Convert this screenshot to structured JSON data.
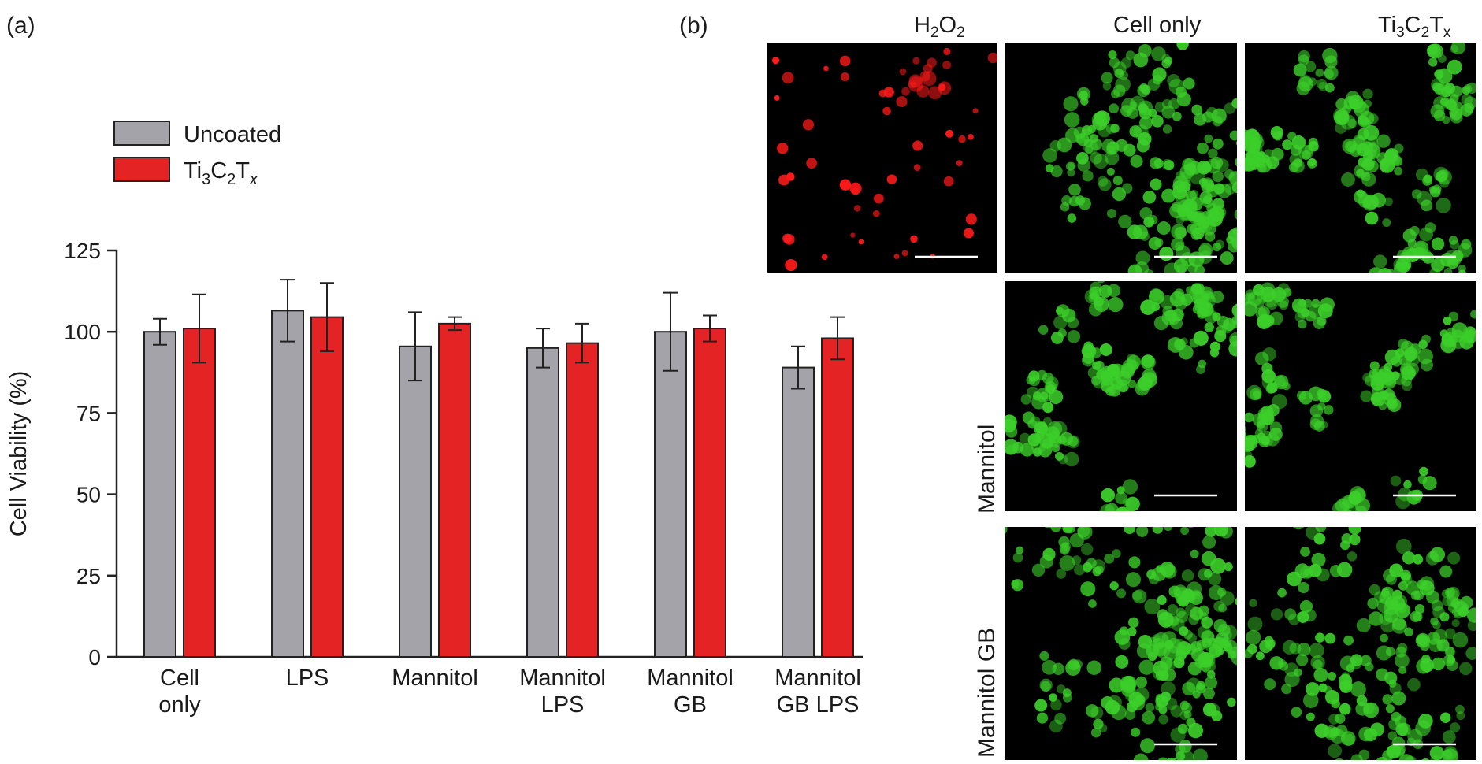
{
  "panels": {
    "a_label": "(a)",
    "b_label": "(b)"
  },
  "chart_data": {
    "type": "bar",
    "title": "",
    "xlabel": "",
    "ylabel": "Cell Viability (%)",
    "ylim": [
      0,
      125
    ],
    "yticks": [
      "0",
      "25",
      "50",
      "75",
      "100",
      "125"
    ],
    "categories": [
      [
        "Cell",
        "only"
      ],
      [
        "LPS"
      ],
      [
        "Mannitol"
      ],
      [
        "Mannitol",
        "LPS"
      ],
      [
        "Mannitol",
        "GB"
      ],
      [
        "Mannitol",
        "GB LPS"
      ]
    ],
    "legend_placement": "top-left",
    "series": [
      {
        "name": "Uncoated",
        "color": "#a3a3a9",
        "values": [
          100,
          106.5,
          95.5,
          95,
          100,
          89
        ],
        "errors": [
          4,
          9.5,
          10.5,
          6,
          12,
          6.5
        ]
      },
      {
        "name": "Ti3C2Tx",
        "color": "#e42424",
        "values": [
          101,
          104.5,
          102.5,
          96.5,
          101,
          98
        ],
        "errors": [
          10.5,
          10.5,
          2,
          6,
          4,
          6.5
        ]
      }
    ]
  },
  "legend": {
    "series_2_parts": {
      "a": "Ti",
      "b": "3",
      "c": "C",
      "d": "2",
      "e": "T",
      "f": "x"
    }
  },
  "micrographs": {
    "col_h2o2": {
      "a": "H",
      "b": "2",
      "c": "O",
      "d": "2"
    },
    "col_cell_only": "Cell only",
    "col_ti": {
      "a": "Ti",
      "b": "3",
      "c": "C",
      "d": "2",
      "e": "T",
      "f": "x"
    },
    "row_mannitol": "Mannitol",
    "row_mannitol_gb": "Mannitol GB",
    "stain_colors": {
      "dead": "#ff1a1a",
      "live": "#3ccf2a"
    }
  }
}
